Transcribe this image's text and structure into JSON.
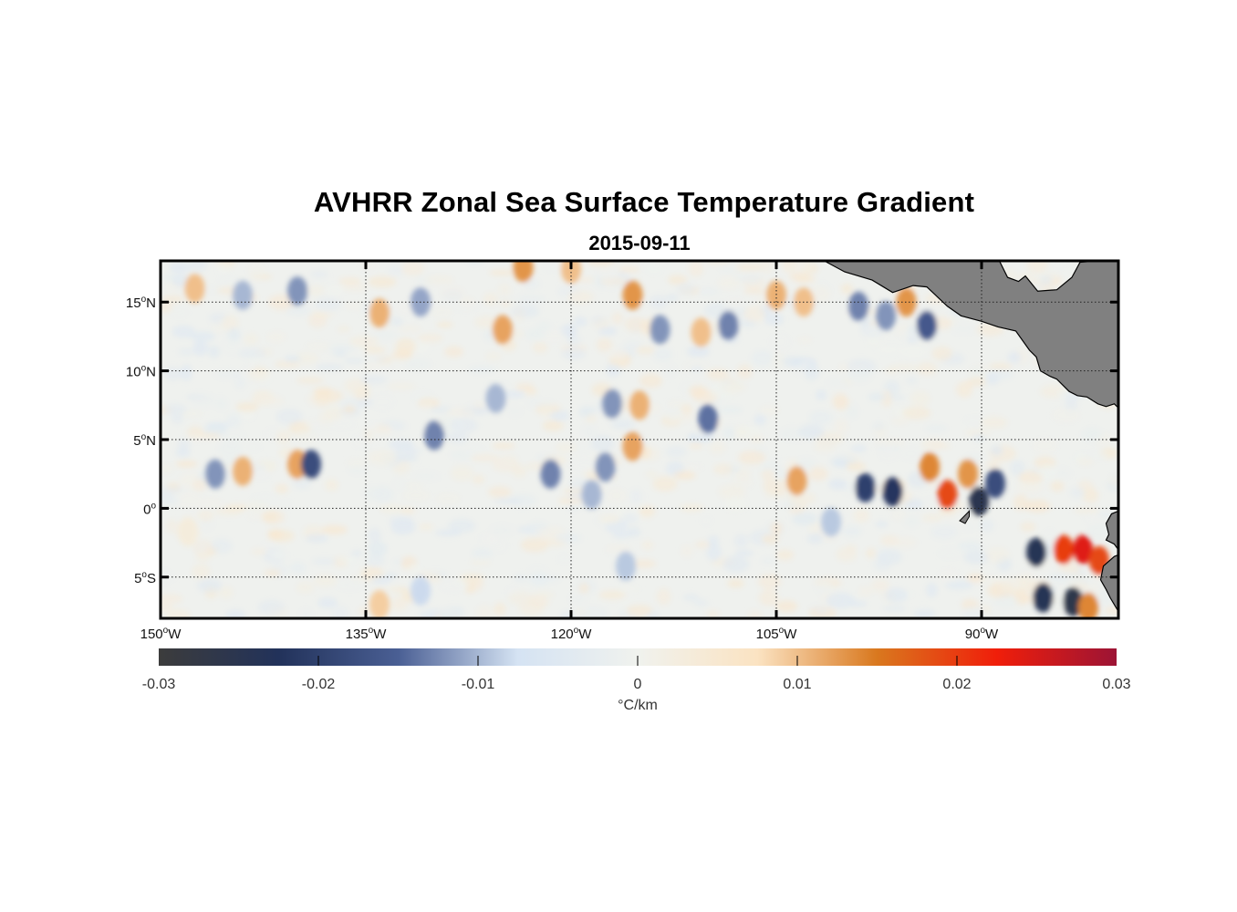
{
  "title": "AVHRR Zonal Sea Surface Temperature Gradient",
  "subtitle": "2015-09-11",
  "map": {
    "lon_range": [
      -150,
      -80
    ],
    "lat_range": [
      -8,
      18
    ],
    "lon_labels": [
      {
        "value": -150,
        "deg": "150",
        "hemi": "W"
      },
      {
        "value": -135,
        "deg": "135",
        "hemi": "W"
      },
      {
        "value": -120,
        "deg": "120",
        "hemi": "W"
      },
      {
        "value": -105,
        "deg": "105",
        "hemi": "W"
      },
      {
        "value": -90,
        "deg": "90",
        "hemi": "W"
      }
    ],
    "lat_labels": [
      {
        "value": 15,
        "deg": "15",
        "hemi": "N"
      },
      {
        "value": 10,
        "deg": "10",
        "hemi": "N"
      },
      {
        "value": 5,
        "deg": "5",
        "hemi": "N"
      },
      {
        "value": 0,
        "deg": "0",
        "hemi": ""
      },
      {
        "value": -5,
        "deg": "5",
        "hemi": "S"
      }
    ],
    "land_color": "#808080",
    "grid": "dotted"
  },
  "colorbar": {
    "range": [
      -0.03,
      0.03
    ],
    "tick_labels": [
      "-0.03",
      "-0.02",
      "-0.01",
      "0",
      "0.01",
      "0.02",
      "0.03"
    ],
    "tick_values": [
      -0.03,
      -0.02,
      -0.01,
      0,
      0.01,
      0.02,
      0.03
    ],
    "unit": "°C/km",
    "colors": [
      "#3c3c3c",
      "#22325a",
      "#4a5f94",
      "#d5e3f3",
      "#f0f2ee",
      "#fbe3c2",
      "#d9781e",
      "#f01e0a",
      "#9c1435"
    ]
  }
}
